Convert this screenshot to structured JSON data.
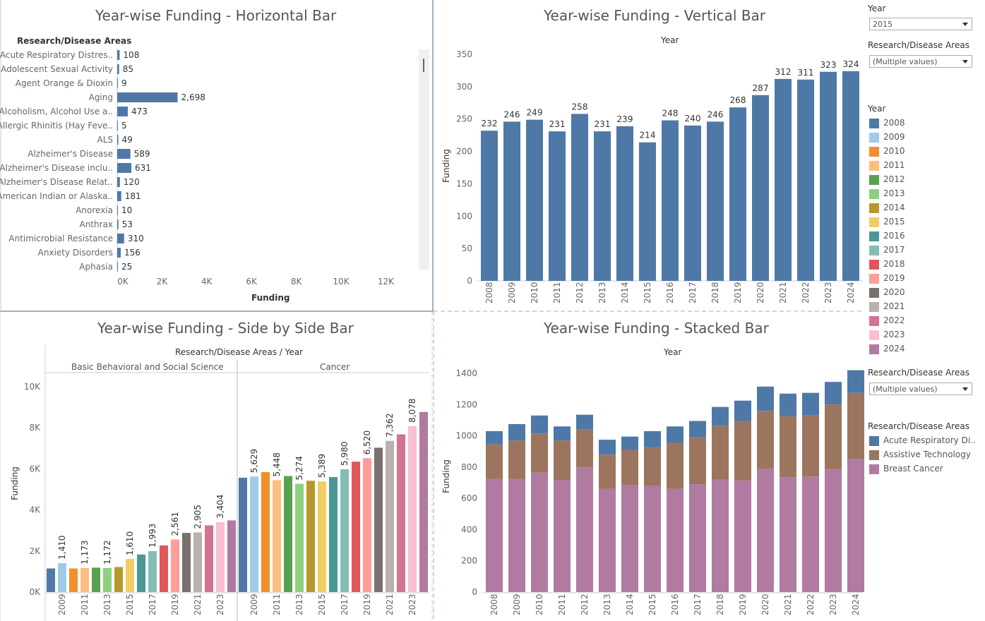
{
  "titles": {
    "horizontal": "Year-wise Funding - Horizontal Bar",
    "vertical": "Year-wise Funding - Vertical Bar",
    "side": "Year-wise Funding - Side by Side Bar",
    "stacked": "Year-wise Funding - Stacked Bar"
  },
  "filters": {
    "year_label": "Year",
    "year_value": "2015",
    "areas_label": "Research/Disease Areas",
    "areas_value": "(Multiple values)",
    "areas2_label": "Research/Disease Areas",
    "areas2_value": "(Multiple values)"
  },
  "legend_year": {
    "title": "Year",
    "items": [
      {
        "label": "2008",
        "color": "#4e79a7"
      },
      {
        "label": "2009",
        "color": "#a0cbe8"
      },
      {
        "label": "2010",
        "color": "#f28e2b"
      },
      {
        "label": "2011",
        "color": "#ffbe7d"
      },
      {
        "label": "2012",
        "color": "#59a14f"
      },
      {
        "label": "2013",
        "color": "#8cd17d"
      },
      {
        "label": "2014",
        "color": "#b6992d"
      },
      {
        "label": "2015",
        "color": "#f1ce63"
      },
      {
        "label": "2016",
        "color": "#499894"
      },
      {
        "label": "2017",
        "color": "#86bcb6"
      },
      {
        "label": "2018",
        "color": "#e15759"
      },
      {
        "label": "2019",
        "color": "#ff9d9a"
      },
      {
        "label": "2020",
        "color": "#79706e"
      },
      {
        "label": "2021",
        "color": "#bab0ac"
      },
      {
        "label": "2022",
        "color": "#d37295"
      },
      {
        "label": "2023",
        "color": "#fabfd2"
      },
      {
        "label": "2024",
        "color": "#b07aa1"
      }
    ]
  },
  "legend_areas": {
    "title": "Research/Disease Areas",
    "items": [
      {
        "label": "Acute Respiratory Di..",
        "color": "#4e79a7"
      },
      {
        "label": "Assistive Technology",
        "color": "#9c755f"
      },
      {
        "label": "Breast Cancer",
        "color": "#b07aa1"
      }
    ]
  },
  "chart_data": [
    {
      "id": "horizontal",
      "type": "bar",
      "orientation": "horizontal",
      "row_header": "Research/Disease Areas",
      "xlabel": "Funding",
      "xlim": [
        0,
        13500
      ],
      "xticks": [
        "0K",
        "2K",
        "4K",
        "6K",
        "8K",
        "10K",
        "12K"
      ],
      "categories": [
        "Acute Respiratory Distres..",
        "Adolescent Sexual Activity",
        "Agent Orange & Dioxin",
        "Aging",
        "Alcoholism, Alcohol Use a..",
        "Allergic Rhinitis (Hay Feve..",
        "ALS",
        "Alzheimer's Disease",
        "Alzheimer's Disease inclu..",
        "Alzheimer's Disease Relat..",
        "American Indian or Alaska..",
        "Anorexia",
        "Anthrax",
        "Antimicrobial Resistance",
        "Anxiety Disorders",
        "Aphasia"
      ],
      "values": [
        108,
        85,
        9,
        2698,
        473,
        5,
        49,
        589,
        631,
        120,
        181,
        10,
        53,
        310,
        156,
        25
      ],
      "labels": [
        "108",
        "85",
        "9",
        "2,698",
        "473",
        "5",
        "49",
        "589",
        "631",
        "120",
        "181",
        "10",
        "53",
        "310",
        "156",
        "25"
      ],
      "color": "#4e79a7"
    },
    {
      "id": "vertical",
      "type": "bar",
      "xlabel": "Year",
      "ylabel": "Funding",
      "ylim": [
        0,
        350
      ],
      "yticks": [
        0,
        50,
        100,
        150,
        200,
        250,
        300,
        350
      ],
      "categories": [
        "2008",
        "2009",
        "2010",
        "2011",
        "2012",
        "2013",
        "2014",
        "2015",
        "2016",
        "2017",
        "2018",
        "2019",
        "2020",
        "2021",
        "2022",
        "2023",
        "2024"
      ],
      "values": [
        232,
        246,
        249,
        231,
        258,
        231,
        239,
        214,
        248,
        240,
        246,
        268,
        287,
        312,
        311,
        323,
        324
      ],
      "color": "#4e79a7"
    },
    {
      "id": "side",
      "type": "bar",
      "header": "Research/Disease Areas  /  Year",
      "ylabel": "Funding",
      "ylim": [
        0,
        10500
      ],
      "yticks": [
        "0K",
        "2K",
        "4K",
        "6K",
        "8K",
        "10K"
      ],
      "groups": [
        {
          "name": "Basic Behavioral and Social Science",
          "values": [
            1150,
            1410,
            1150,
            1173,
            1190,
            1172,
            1220,
            1610,
            1830,
            1993,
            2270,
            2561,
            2880,
            2905,
            3250,
            3404,
            3490
          ],
          "labels": [
            "",
            "1,410",
            "",
            "1,173",
            "",
            "1,172",
            "",
            "1,610",
            "",
            "1,993",
            "",
            "2,561",
            "",
            "2,905",
            "",
            "3,404",
            ""
          ]
        },
        {
          "name": "Cancer",
          "values": [
            5570,
            5629,
            5840,
            5448,
            5650,
            5274,
            5420,
            5389,
            5600,
            5980,
            6350,
            6520,
            7030,
            7362,
            7680,
            8078,
            8770
          ],
          "labels": [
            "",
            "5,629",
            "",
            "5,448",
            "",
            "5,274",
            "",
            "5,389",
            "",
            "5,980",
            "",
            "6,520",
            "",
            "7,362",
            "",
            "8,078",
            ""
          ]
        }
      ],
      "year_ticks": [
        "2009",
        "2011",
        "2013",
        "2015",
        "2017",
        "2019",
        "2021",
        "2023"
      ]
    },
    {
      "id": "stacked",
      "type": "bar",
      "stacked": true,
      "xlabel": "Year",
      "ylabel": "Funding",
      "ylim": [
        0,
        1450
      ],
      "yticks": [
        0,
        200,
        400,
        600,
        800,
        1000,
        1200,
        1400
      ],
      "categories": [
        "2008",
        "2009",
        "2010",
        "2011",
        "2012",
        "2013",
        "2014",
        "2015",
        "2016",
        "2017",
        "2018",
        "2019",
        "2020",
        "2021",
        "2022",
        "2023",
        "2024"
      ],
      "series": [
        {
          "name": "Breast Cancer",
          "color": "#b07aa1",
          "values": [
            725,
            725,
            765,
            715,
            800,
            660,
            685,
            680,
            660,
            690,
            720,
            715,
            790,
            735,
            740,
            785,
            850
          ]
        },
        {
          "name": "Assistive Technology",
          "color": "#9c755f",
          "values": [
            220,
            245,
            250,
            255,
            240,
            220,
            225,
            245,
            295,
            300,
            345,
            380,
            370,
            390,
            390,
            415,
            425
          ]
        },
        {
          "name": "Acute Respiratory Di..",
          "color": "#4e79a7",
          "values": [
            85,
            105,
            115,
            90,
            95,
            95,
            85,
            105,
            105,
            105,
            120,
            130,
            155,
            145,
            145,
            145,
            145
          ]
        }
      ]
    }
  ]
}
